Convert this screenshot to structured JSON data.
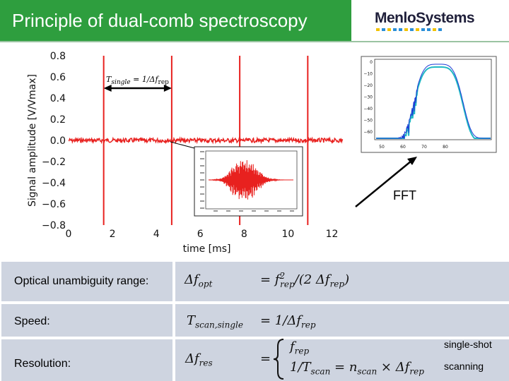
{
  "header": {
    "title": "Principle of dual-comb spectroscopy",
    "logo_text": "MenloSystems",
    "logo_dot_colors": [
      "#f2c200",
      "#2a8fd8",
      "#f2c200",
      "#2a8fd8",
      "#2a8fd8",
      "#f2c200",
      "#2a8fd8",
      "#f2c200",
      "#2a8fd8",
      "#2a8fd8",
      "#f2c200",
      "#2a8fd8"
    ]
  },
  "chart_data": [
    {
      "type": "line",
      "ylabel": "Signal amplitude [V/Vmax]",
      "xlabel": "time [ms]",
      "xlim": [
        0,
        12.5
      ],
      "ylim": [
        -0.8,
        0.8
      ],
      "xticks": [
        0,
        2,
        4,
        6,
        8,
        10,
        12
      ],
      "yticks": [
        0.8,
        0.6,
        0.4,
        0.2,
        0.0,
        -0.2,
        -0.4,
        -0.6,
        -0.8
      ],
      "yticklabels": [
        "0.8",
        "0.6",
        "0.4",
        "0.2",
        "0.0",
        "−0.2",
        "−0.4",
        "−0.6",
        "−0.8"
      ],
      "series_color": "#e8211f",
      "burst_times": [
        1.6,
        4.7,
        7.8,
        10.9
      ],
      "burst_amplitude": [
        -0.8,
        0.8
      ],
      "baseline": 0.0,
      "annotation": "T_single = 1/Δf_rep",
      "annotation_span": [
        1.6,
        4.7
      ]
    },
    {
      "type": "line",
      "role": "inset-interferogram-zoom",
      "series_color": "#e8211f"
    },
    {
      "type": "line",
      "role": "fft-spectrum",
      "yticks": [
        "0",
        "−10",
        "−20",
        "−30",
        "−40",
        "−50",
        "−60"
      ],
      "xticks": [
        "50",
        "60",
        "70",
        "80"
      ],
      "series_colors": [
        "#1f3bd6",
        "#1fb8c4"
      ]
    }
  ],
  "fft_label": "FFT",
  "table": {
    "row1": {
      "label": "Optical unambiguity range:",
      "lhs": "Δf",
      "lhs_sub": "opt",
      "rhs": "= f",
      "rhs_sub": "rep",
      "rhs_sup": "2",
      "rhs_tail": "/(2 Δf",
      "rhs_tail_sub": "rep",
      "rhs_end": ")"
    },
    "row2": {
      "label": "Speed:",
      "lhs": "T",
      "lhs_sub": "scan,single",
      "rhs": "= 1/Δf",
      "rhs_sub": "rep"
    },
    "row3": {
      "label": "Resolution:",
      "lhs": "Δf",
      "lhs_sub": "res",
      "eq": "=",
      "case1": "f",
      "case1_sub": "rep",
      "case2": "1/T",
      "case2_sub": "scan",
      "case2_mid": " = n",
      "case2_mid_sub": "scan",
      "case2_tail": " × Δf",
      "case2_tail_sub": "rep",
      "note1": "single-shot",
      "note2": "scanning"
    }
  }
}
